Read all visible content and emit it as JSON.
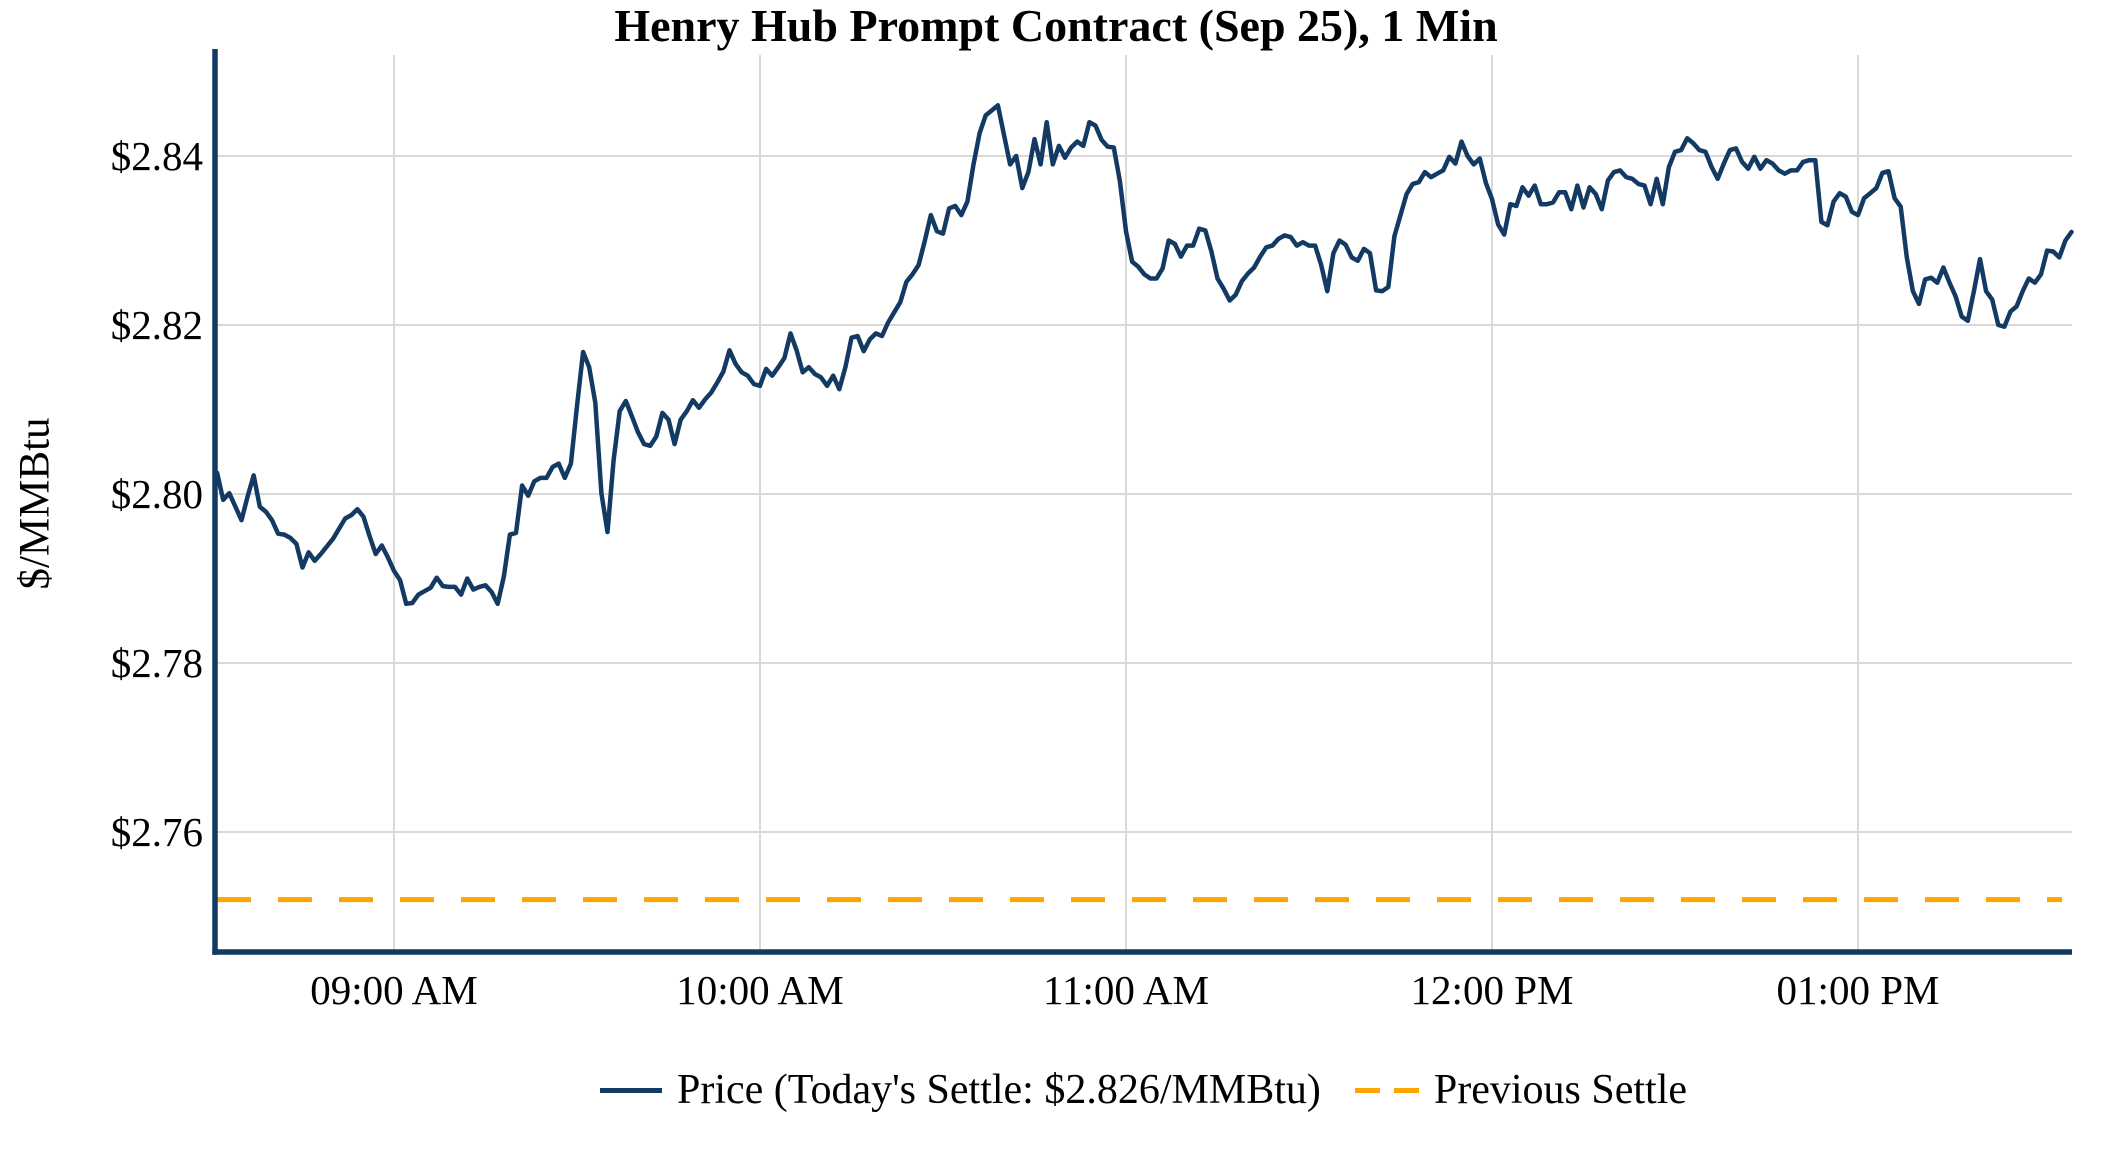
{
  "title": "Henry Hub Prompt Contract (Sep 25), 1 Min",
  "y_axis": {
    "label": "$/MMBtu",
    "tick_labels": [
      "$2.76",
      "$2.78",
      "$2.80",
      "$2.82",
      "$2.84"
    ],
    "tick_values": [
      2.76,
      2.78,
      2.8,
      2.82,
      2.84
    ]
  },
  "x_axis": {
    "tick_labels": [
      "09:00 AM",
      "10:00 AM",
      "11:00 AM",
      "12:00 PM",
      "01:00 PM"
    ]
  },
  "legend": {
    "price_label": "Price (Today's Settle: $2.826/MMBtu)",
    "previous_settle_label": "Previous Settle"
  },
  "colors": {
    "price_line": "#123A63",
    "previous_settle_line": "#FFA500",
    "grid": "#D9D9D9",
    "spine": "#123A63",
    "text": "#000000"
  },
  "chart_data": {
    "type": "line",
    "title": "Henry Hub Prompt Contract (Sep 25), 1 Min",
    "xlabel": "",
    "ylabel": "$/MMBtu",
    "grid": true,
    "legend_position": "bottom",
    "y_ticks": [
      2.76,
      2.78,
      2.8,
      2.82,
      2.84
    ],
    "x_ticks": [
      "09:00 AM",
      "10:00 AM",
      "11:00 AM",
      "12:00 PM",
      "01:00 PM"
    ],
    "ylim": [
      2.746,
      2.852
    ],
    "x_range": [
      "08:31",
      "13:35"
    ],
    "today_settle": 2.826,
    "previous_settle": 2.752,
    "series": [
      {
        "name": "Price (Today's Settle: $2.826/MMBtu)",
        "style": "solid",
        "x_start": "08:31",
        "x_interval_minutes": 1,
        "values": [
          2.8025,
          2.7993,
          2.8001,
          2.7985,
          2.7969,
          2.7997,
          2.8022,
          2.7985,
          2.7979,
          2.7969,
          2.7953,
          2.7952,
          2.7948,
          2.7941,
          2.7913,
          2.7931,
          2.7921,
          2.7929,
          2.7938,
          2.7947,
          2.7959,
          2.7971,
          2.7975,
          2.7982,
          2.7973,
          2.795,
          2.7929,
          2.7939,
          2.7925,
          2.7909,
          2.7898,
          2.787,
          2.7871,
          2.7881,
          2.7885,
          2.7889,
          2.7901,
          2.7891,
          2.789,
          2.789,
          2.7881,
          2.79,
          2.7887,
          2.789,
          2.7892,
          2.7884,
          2.787,
          2.7902,
          2.7952,
          2.7954,
          2.801,
          2.7998,
          2.8015,
          2.8019,
          2.8019,
          2.8032,
          2.8036,
          2.8019,
          2.8036,
          2.8104,
          2.8168,
          2.815,
          2.8108,
          2.8001,
          2.7955,
          2.804,
          2.8098,
          2.811,
          2.8092,
          2.8073,
          2.8059,
          2.8057,
          2.8068,
          2.8096,
          2.8088,
          2.8059,
          2.8088,
          2.8098,
          2.8111,
          2.8102,
          2.8112,
          2.812,
          2.8132,
          2.8145,
          2.817,
          2.8154,
          2.8144,
          2.814,
          2.813,
          2.8128,
          2.8148,
          2.814,
          2.815,
          2.8161,
          2.819,
          2.817,
          2.8144,
          2.815,
          2.8142,
          2.8138,
          2.8128,
          2.814,
          2.8124,
          2.815,
          2.8185,
          2.8187,
          2.8169,
          2.8183,
          2.819,
          2.8187,
          2.8203,
          2.8215,
          2.8227,
          2.8251,
          2.826,
          2.8271,
          2.8299,
          2.833,
          2.8311,
          2.8308,
          2.8338,
          2.8341,
          2.833,
          2.8346,
          2.839,
          2.8427,
          2.8448,
          2.8454,
          2.846,
          2.8425,
          2.839,
          2.84,
          2.8362,
          2.8381,
          2.842,
          2.839,
          2.844,
          2.839,
          2.8412,
          2.8398,
          2.841,
          2.8417,
          2.8412,
          2.844,
          2.8436,
          2.8419,
          2.8411,
          2.841,
          2.837,
          2.8311,
          2.8275,
          2.8269,
          2.826,
          2.8255,
          2.8255,
          2.8267,
          2.83,
          2.8296,
          2.8281,
          2.8294,
          2.8294,
          2.8314,
          2.8312,
          2.8287,
          2.8255,
          2.8243,
          2.8229,
          2.8236,
          2.8252,
          2.8261,
          2.8268,
          2.8281,
          2.8292,
          2.8294,
          2.8302,
          2.8306,
          2.8304,
          2.8294,
          2.8298,
          2.8294,
          2.8294,
          2.8271,
          2.824,
          2.8285,
          2.83,
          2.8295,
          2.828,
          2.8276,
          2.829,
          2.8285,
          2.8241,
          2.824,
          2.8245,
          2.8305,
          2.833,
          2.8355,
          2.8367,
          2.8369,
          2.8381,
          2.8375,
          2.8379,
          2.8383,
          2.8399,
          2.8391,
          2.8417,
          2.84,
          2.839,
          2.8397,
          2.8368,
          2.8349,
          2.8319,
          2.8307,
          2.8343,
          2.8341,
          2.8363,
          2.8353,
          2.8365,
          2.8343,
          2.8343,
          2.8345,
          2.8357,
          2.8357,
          2.8337,
          2.8365,
          2.8339,
          2.8363,
          2.8355,
          2.8337,
          2.8371,
          2.8381,
          2.8383,
          2.8375,
          2.8373,
          2.8367,
          2.8365,
          2.8343,
          2.8373,
          2.8343,
          2.8387,
          2.8405,
          2.8407,
          2.8421,
          2.8415,
          2.8407,
          2.8405,
          2.8387,
          2.8373,
          2.8391,
          2.8407,
          2.8409,
          2.8393,
          2.8385,
          2.8399,
          2.8385,
          2.8395,
          2.8391,
          2.8383,
          2.8379,
          2.8383,
          2.8383,
          2.8393,
          2.8395,
          2.8395,
          2.8322,
          2.8318,
          2.8346,
          2.8356,
          2.8352,
          2.8334,
          2.833,
          2.835,
          2.8356,
          2.8362,
          2.838,
          2.8382,
          2.835,
          2.834,
          2.828,
          2.824,
          2.8225,
          2.8254,
          2.8256,
          2.825,
          2.8268,
          2.825,
          2.8234,
          2.821,
          2.8205,
          2.824,
          2.8278,
          2.824,
          2.823,
          2.82,
          2.8198,
          2.8216,
          2.8222,
          2.824,
          2.8255,
          2.825,
          2.826,
          2.8288,
          2.8287,
          2.828,
          2.83,
          2.831
        ]
      },
      {
        "name": "Previous Settle",
        "style": "dashed",
        "constant_value": 2.752
      }
    ]
  }
}
